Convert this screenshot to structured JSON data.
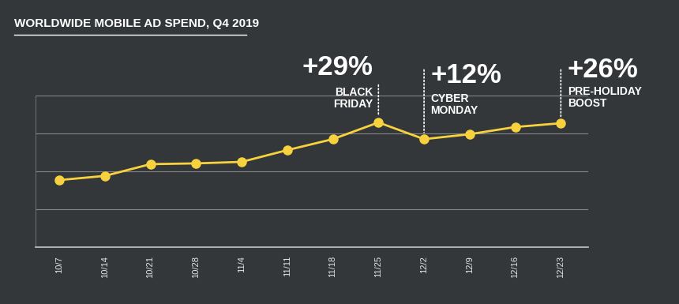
{
  "chart_data": {
    "type": "line",
    "title": "WORLDWIDE MOBILE AD SPEND, Q4 2019",
    "categories": [
      "10/7",
      "10/14",
      "10/21",
      "10/28",
      "11/4",
      "11/11",
      "11/18",
      "11/25",
      "12/2",
      "12/9",
      "12/16",
      "12/23"
    ],
    "values": [
      1.77,
      1.88,
      2.19,
      2.21,
      2.25,
      2.56,
      2.85,
      3.29,
      2.85,
      2.98,
      3.17,
      3.27
    ],
    "color": "#f7d23e",
    "marker": "o",
    "line_style": "solid",
    "ylim": [
      0,
      4
    ],
    "yticks": [
      0,
      1,
      2,
      3,
      4
    ],
    "grid": true,
    "tick_labels": "x",
    "annotations": [
      {
        "category": "11/25",
        "label": "+29%",
        "text": "BLACK\nFRIDAY"
      },
      {
        "category": "12/2",
        "label": "+12%",
        "text": "CYBER\nMONDAY"
      },
      {
        "category": "12/23",
        "label": "+26%",
        "text": "PRE-HOLIDAY\nBOOST"
      }
    ]
  }
}
